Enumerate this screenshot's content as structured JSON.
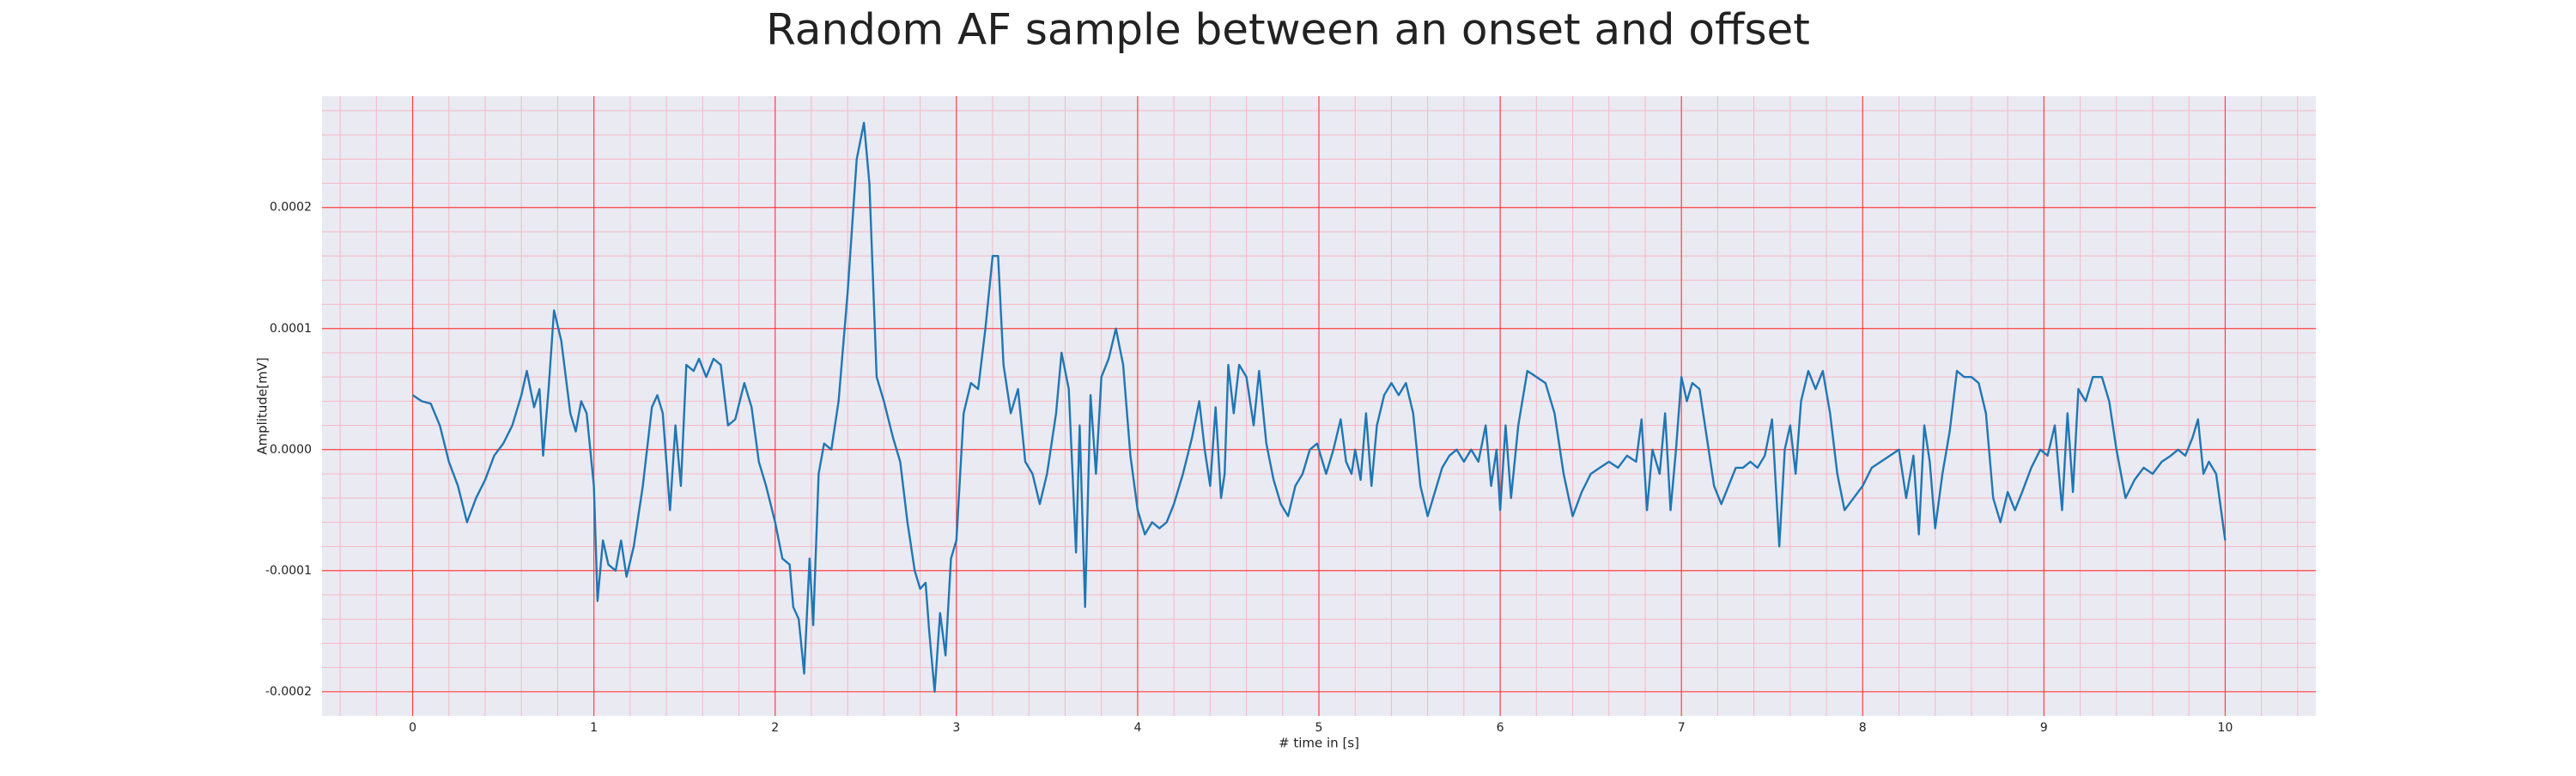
{
  "chart_data": {
    "type": "line",
    "title": "Random AF sample between an onset and offset",
    "xlabel": "# time in [s]",
    "ylabel": "Amplitude[mV]",
    "color": "#1f77b4",
    "background": "#eaeaf2",
    "grid": true,
    "grid_color": "#ff4040",
    "minor_grid": true,
    "minor_grid_color": "#f5b8c4",
    "xlim": [
      -0.5,
      10.5
    ],
    "ylim": [
      -0.00022,
      0.000292
    ],
    "xticks": [
      0,
      1,
      2,
      3,
      4,
      5,
      6,
      7,
      8,
      9,
      10
    ],
    "yticks": [
      -0.0002,
      -0.0001,
      {
        "value": 0,
        "label": "0.0000"
      },
      0.0001,
      0.0002
    ],
    "x": [
      0,
      0.05,
      0.1,
      0.15,
      0.2,
      0.25,
      0.3,
      0.35,
      0.4,
      0.45,
      0.5,
      0.55,
      0.6,
      0.63,
      0.67,
      0.7,
      0.72,
      0.75,
      0.78,
      0.82,
      0.87,
      0.9,
      0.93,
      0.96,
      1.0,
      1.02,
      1.05,
      1.08,
      1.12,
      1.15,
      1.18,
      1.22,
      1.27,
      1.32,
      1.35,
      1.38,
      1.42,
      1.45,
      1.48,
      1.51,
      1.55,
      1.58,
      1.62,
      1.66,
      1.7,
      1.74,
      1.78,
      1.83,
      1.87,
      1.91,
      1.95,
      2.0,
      2.04,
      2.08,
      2.1,
      2.13,
      2.16,
      2.19,
      2.21,
      2.24,
      2.27,
      2.31,
      2.35,
      2.4,
      2.45,
      2.49,
      2.52,
      2.56,
      2.6,
      2.65,
      2.69,
      2.73,
      2.77,
      2.8,
      2.83,
      2.85,
      2.88,
      2.91,
      2.94,
      2.97,
      3.0,
      3.04,
      3.08,
      3.12,
      3.16,
      3.2,
      3.23,
      3.26,
      3.3,
      3.34,
      3.38,
      3.42,
      3.46,
      3.5,
      3.55,
      3.58,
      3.62,
      3.66,
      3.68,
      3.71,
      3.74,
      3.77,
      3.8,
      3.84,
      3.88,
      3.92,
      3.96,
      4.0,
      4.04,
      4.08,
      4.12,
      4.16,
      4.2,
      4.25,
      4.3,
      4.34,
      4.37,
      4.4,
      4.43,
      4.46,
      4.48,
      4.5,
      4.53,
      4.56,
      4.6,
      4.64,
      4.67,
      4.71,
      4.75,
      4.79,
      4.83,
      4.87,
      4.91,
      4.95,
      4.99,
      5.04,
      5.08,
      5.12,
      5.15,
      5.18,
      5.2,
      5.23,
      5.26,
      5.29,
      5.32,
      5.36,
      5.4,
      5.44,
      5.48,
      5.52,
      5.56,
      5.6,
      5.64,
      5.68,
      5.72,
      5.76,
      5.8,
      5.84,
      5.88,
      5.92,
      5.95,
      5.98,
      6.0,
      6.03,
      6.06,
      6.1,
      6.15,
      6.2,
      6.25,
      6.3,
      6.35,
      6.4,
      6.45,
      6.5,
      6.55,
      6.6,
      6.65,
      6.7,
      6.75,
      6.78,
      6.81,
      6.84,
      6.88,
      6.91,
      6.94,
      6.97,
      7.0,
      7.03,
      7.06,
      7.1,
      7.14,
      7.18,
      7.22,
      7.26,
      7.3,
      7.34,
      7.38,
      7.42,
      7.46,
      7.5,
      7.54,
      7.57,
      7.6,
      7.63,
      7.66,
      7.7,
      7.74,
      7.78,
      7.82,
      7.86,
      7.9,
      7.95,
      8.0,
      8.05,
      8.1,
      8.15,
      8.2,
      8.24,
      8.28,
      8.31,
      8.34,
      8.37,
      8.4,
      8.44,
      8.48,
      8.52,
      8.56,
      8.6,
      8.64,
      8.68,
      8.72,
      8.76,
      8.8,
      8.84,
      8.88,
      8.93,
      8.98,
      9.02,
      9.06,
      9.1,
      9.13,
      9.16,
      9.19,
      9.23,
      9.27,
      9.32,
      9.36,
      9.4,
      9.45,
      9.5,
      9.55,
      9.6,
      9.65,
      9.7,
      9.74,
      9.78,
      9.82,
      9.85,
      9.88,
      9.91,
      9.95,
      10.0
    ],
    "values": [
      4.5e-05,
      4e-05,
      3.8e-05,
      2e-05,
      -1e-05,
      -3e-05,
      -6e-05,
      -4e-05,
      -2.5e-05,
      -5e-06,
      5e-06,
      2e-05,
      4.5e-05,
      6.5e-05,
      3.5e-05,
      5e-05,
      -5e-06,
      5e-05,
      0.000115,
      9e-05,
      3e-05,
      1.5e-05,
      4e-05,
      3e-05,
      -3e-05,
      -0.000125,
      -7.5e-05,
      -9.5e-05,
      -0.0001,
      -7.5e-05,
      -0.000105,
      -8e-05,
      -3e-05,
      3.5e-05,
      4.5e-05,
      3e-05,
      -5e-05,
      2e-05,
      -3e-05,
      7e-05,
      6.5e-05,
      7.5e-05,
      6e-05,
      7.5e-05,
      7e-05,
      2e-05,
      2.5e-05,
      5.5e-05,
      3.5e-05,
      -1e-05,
      -3e-05,
      -6e-05,
      -9e-05,
      -9.5e-05,
      -0.00013,
      -0.00014,
      -0.000185,
      -9e-05,
      -0.000145,
      -2e-05,
      5e-06,
      0,
      4e-05,
      0.00013,
      0.00024,
      0.00027,
      0.00022,
      6e-05,
      4e-05,
      1e-05,
      -1e-05,
      -6e-05,
      -0.0001,
      -0.000115,
      -0.00011,
      -0.00015,
      -0.0002,
      -0.000135,
      -0.00017,
      -9e-05,
      -7.5e-05,
      3e-05,
      5.5e-05,
      5e-05,
      0.0001,
      0.00016,
      0.00016,
      7e-05,
      3e-05,
      5e-05,
      -1e-05,
      -2e-05,
      -4.5e-05,
      -2e-05,
      3e-05,
      8e-05,
      5e-05,
      -8.5e-05,
      2e-05,
      -0.00013,
      4.5e-05,
      -2e-05,
      6e-05,
      7.5e-05,
      0.0001,
      7e-05,
      -5e-06,
      -5e-05,
      -7e-05,
      -6e-05,
      -6.5e-05,
      -6e-05,
      -4.5e-05,
      -2e-05,
      1e-05,
      4e-05,
      0,
      -3e-05,
      3.5e-05,
      -4e-05,
      -2e-05,
      7e-05,
      3e-05,
      7e-05,
      6e-05,
      2e-05,
      6.5e-05,
      5e-06,
      -2.5e-05,
      -4.5e-05,
      -5.5e-05,
      -3e-05,
      -2e-05,
      0,
      5e-06,
      -2e-05,
      0,
      2.5e-05,
      -1e-05,
      -2e-05,
      0,
      -2.5e-05,
      3e-05,
      -3e-05,
      2e-05,
      4.5e-05,
      5.5e-05,
      4.5e-05,
      5.5e-05,
      3e-05,
      -3e-05,
      -5.5e-05,
      -3.5e-05,
      -1.5e-05,
      -5e-06,
      0,
      -1e-05,
      0,
      -1e-05,
      2e-05,
      -3e-05,
      0,
      -5e-05,
      2e-05,
      -4e-05,
      2e-05,
      6.5e-05,
      6e-05,
      5.5e-05,
      3e-05,
      -2e-05,
      -5.5e-05,
      -3.5e-05,
      -2e-05,
      -1.5e-05,
      -1e-05,
      -1.5e-05,
      -5e-06,
      -1e-05,
      2.5e-05,
      -5e-05,
      0,
      -2e-05,
      3e-05,
      -5e-05,
      0,
      6e-05,
      4e-05,
      5.5e-05,
      5e-05,
      1e-05,
      -3e-05,
      -4.5e-05,
      -3e-05,
      -1.5e-05,
      -1.5e-05,
      -1e-05,
      -1.5e-05,
      -5e-06,
      2.5e-05,
      -8e-05,
      0,
      2e-05,
      -2e-05,
      4e-05,
      6.5e-05,
      5e-05,
      6.5e-05,
      3e-05,
      -2e-05,
      -5e-05,
      -4e-05,
      -3e-05,
      -1.5e-05,
      -1e-05,
      -5e-06,
      0,
      -4e-05,
      -5e-06,
      -7e-05,
      2e-05,
      -1e-05,
      -6.5e-05,
      -2e-05,
      1.5e-05,
      6.5e-05,
      6e-05,
      6e-05,
      5.5e-05,
      3e-05,
      -4e-05,
      -6e-05,
      -3.5e-05,
      -5e-05,
      -3.5e-05,
      -1.5e-05,
      0,
      -5e-06,
      2e-05,
      -5e-05,
      3e-05,
      -3.5e-05,
      5e-05,
      4e-05,
      6e-05,
      6e-05,
      4e-05,
      0,
      -4e-05,
      -2.5e-05,
      -1.5e-05,
      -2e-05,
      -1e-05,
      -5e-06,
      0,
      -5e-06,
      1e-05,
      2.5e-05,
      -2e-05,
      -1e-05,
      -2e-05,
      -7.5e-05
    ]
  }
}
